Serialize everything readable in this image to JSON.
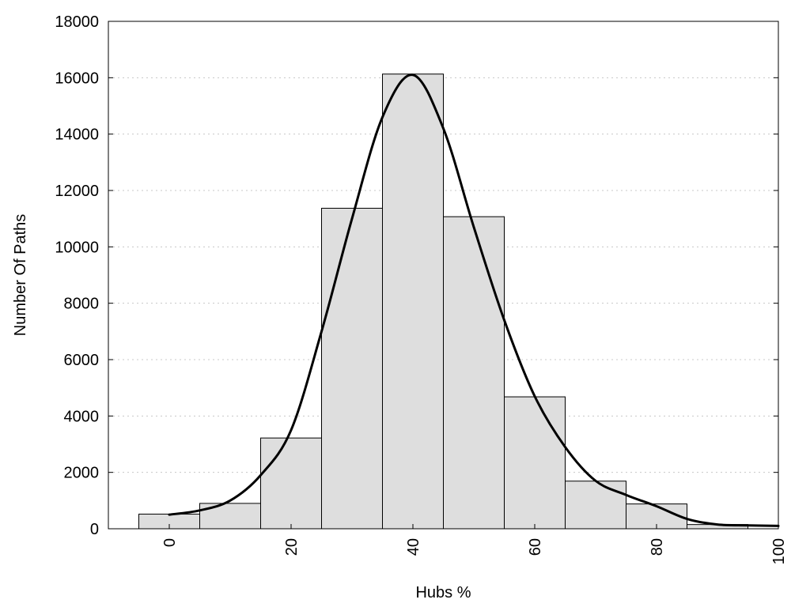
{
  "chart_data": {
    "type": "bar",
    "title": "",
    "xlabel": "Hubs %",
    "ylabel": "Number Of Paths",
    "xlim": [
      -10,
      100
    ],
    "ylim": [
      0,
      18000
    ],
    "grid": true,
    "bin_width": 10,
    "x_ticks": [
      "0",
      "20",
      "40",
      "60",
      "80",
      "100"
    ],
    "y_ticks": [
      "0",
      "2000",
      "4000",
      "6000",
      "8000",
      "10000",
      "12000",
      "14000",
      "16000",
      "18000"
    ],
    "categories": [
      "0",
      "10",
      "20",
      "30",
      "40",
      "50",
      "60",
      "70",
      "80",
      "90"
    ],
    "bin_centers": [
      0,
      10,
      20,
      30,
      40,
      50,
      60,
      70,
      80,
      90
    ],
    "values": [
      520,
      900,
      3220,
      11370,
      16130,
      11070,
      4680,
      1690,
      880,
      150
    ],
    "density_curve": {
      "x": [
        0,
        5,
        10,
        15,
        20,
        25,
        30,
        35,
        40,
        45,
        50,
        55,
        60,
        65,
        70,
        75,
        80,
        85,
        90,
        95,
        100
      ],
      "y": [
        500,
        650,
        1000,
        1900,
        3500,
        7000,
        11000,
        14600,
        16100,
        14200,
        10700,
        7400,
        4700,
        2900,
        1700,
        1200,
        800,
        350,
        150,
        120,
        100
      ]
    },
    "colors": {
      "bar_fill": "#dedede",
      "bar_edge": "#000000",
      "curve": "#000000"
    }
  }
}
